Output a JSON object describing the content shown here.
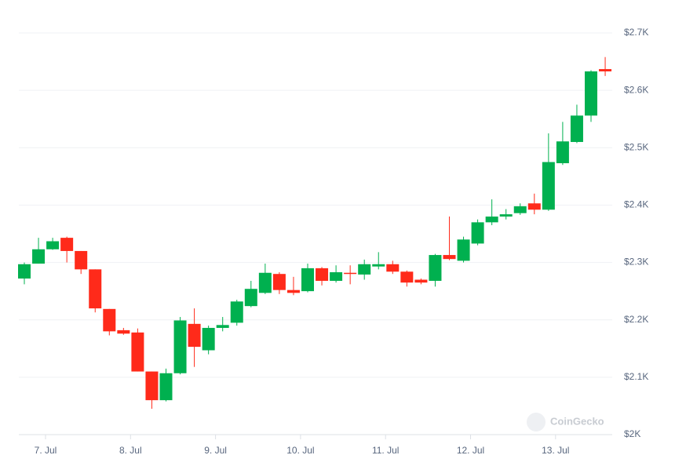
{
  "chart_data": {
    "type": "candlestick",
    "watermark": "CoinGecko",
    "x_labels": [
      "7. Jul",
      "8. Jul",
      "9. Jul",
      "10. Jul",
      "11. Jul",
      "12. Jul",
      "13. Jul"
    ],
    "open": [
      2272,
      2298,
      2323,
      2343,
      2320,
      2288,
      2219,
      2182,
      2178,
      2110,
      2060,
      2107,
      2193,
      2147,
      2186,
      2195,
      2224,
      2247,
      2280,
      2252,
      2250,
      2290,
      2268,
      2282,
      2279,
      2293,
      2297,
      2284,
      2270,
      2268,
      2313,
      2303,
      2333,
      2370,
      2380,
      2386,
      2403,
      2392,
      2473,
      2510,
      2556,
      2637
    ],
    "high": [
      2300,
      2343,
      2343,
      2345,
      2320,
      2288,
      2219,
      2186,
      2185,
      2110,
      2115,
      2205,
      2220,
      2190,
      2205,
      2235,
      2268,
      2298,
      2283,
      2275,
      2298,
      2292,
      2295,
      2295,
      2305,
      2318,
      2303,
      2286,
      2272,
      2315,
      2380,
      2345,
      2375,
      2410,
      2393,
      2403,
      2420,
      2525,
      2545,
      2575,
      2635,
      2658
    ],
    "low": [
      2262,
      2298,
      2322,
      2300,
      2280,
      2213,
      2173,
      2174,
      2110,
      2045,
      2058,
      2105,
      2118,
      2140,
      2180,
      2190,
      2222,
      2245,
      2245,
      2243,
      2248,
      2260,
      2265,
      2262,
      2270,
      2288,
      2280,
      2258,
      2262,
      2258,
      2304,
      2300,
      2330,
      2365,
      2375,
      2383,
      2384,
      2390,
      2470,
      2508,
      2545,
      2625
    ],
    "close": [
      2297,
      2323,
      2337,
      2320,
      2288,
      2220,
      2180,
      2176,
      2110,
      2060,
      2107,
      2199,
      2153,
      2186,
      2191,
      2232,
      2254,
      2282,
      2252,
      2247,
      2290,
      2268,
      2283,
      2281,
      2297,
      2297,
      2284,
      2265,
      2265,
      2313,
      2306,
      2340,
      2370,
      2380,
      2384,
      2398,
      2392,
      2475,
      2511,
      2556,
      2633,
      2633
    ],
    "up_color": "#00b04f",
    "down_color": "#ff2a1a",
    "ylim": [
      2000,
      2700
    ],
    "yticks": [
      {
        "value": 2000,
        "label": "$2K"
      },
      {
        "value": 2100,
        "label": "$2.1K"
      },
      {
        "value": 2200,
        "label": "$2.2K"
      },
      {
        "value": 2300,
        "label": "$2.3K"
      },
      {
        "value": 2400,
        "label": "$2.4K"
      },
      {
        "value": 2500,
        "label": "$2.5K"
      },
      {
        "value": 2600,
        "label": "$2.6K"
      },
      {
        "value": 2700,
        "label": "$2.7K"
      }
    ],
    "grid": true
  }
}
